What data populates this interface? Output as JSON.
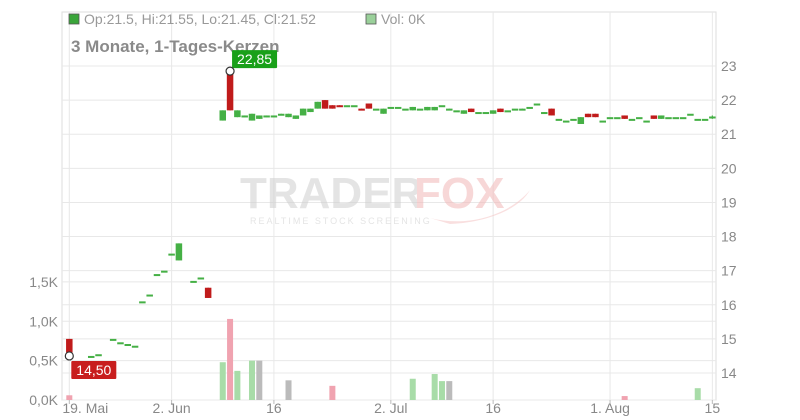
{
  "header": {
    "ohlc_text": "Op:21.5, Hi:21.55, Lo:21.45, Cl:21.52",
    "vol_text": "Vol: 0K",
    "subtitle": "3 Monate, 1-Tages-Kerzen",
    "ohlc_color": "#3aa53a",
    "vol_color": "#9ad09a"
  },
  "watermark": {
    "brand_left": "TRADER",
    "brand_right": "FOX",
    "tagline": "REALTIME STOCK SCREENING"
  },
  "callouts": {
    "high": "22,85",
    "low": "14,50",
    "high_color": "#19a019",
    "low_color": "#c81e1e"
  },
  "colors": {
    "up": "#45b045",
    "down": "#c01b1b",
    "vol_up": "#a8dca8",
    "vol_down": "#f0a3b0",
    "vol_neutral": "#bbbbbb",
    "grid": "#e8e8e8"
  },
  "chart_data": {
    "type": "candlestick",
    "y_price_ticks": [
      "14",
      "15",
      "16",
      "17",
      "18",
      "19",
      "20",
      "21",
      "22",
      "23"
    ],
    "y_price_range": [
      13.6,
      23.7
    ],
    "y_volume_ticks": [
      "0,0K",
      "0,5K",
      "1,0K",
      "1,5K"
    ],
    "y_volume_range": [
      0,
      1.55
    ],
    "x_ticks": [
      {
        "label": "19. Mai",
        "day": 0
      },
      {
        "label": "2. Jun",
        "day": 14
      },
      {
        "label": "16",
        "day": 28
      },
      {
        "label": "2. Jul",
        "day": 44
      },
      {
        "label": "16",
        "day": 58
      },
      {
        "label": "1. Aug",
        "day": 74
      },
      {
        "label": "15",
        "day": 88
      }
    ],
    "x_range": [
      -1,
      88.5
    ],
    "candles": [
      {
        "day": 0,
        "open": 15.0,
        "high": 15.0,
        "low": 14.5,
        "close": 14.6,
        "vol": 0.06
      },
      {
        "day": 3,
        "open": 14.5,
        "high": 14.5,
        "low": 14.5,
        "close": 14.5
      },
      {
        "day": 4,
        "open": 14.55,
        "high": 14.55,
        "low": 14.55,
        "close": 14.55
      },
      {
        "day": 6,
        "open": 15.0,
        "high": 15.0,
        "low": 15.0,
        "close": 15.0
      },
      {
        "day": 7,
        "open": 14.9,
        "high": 14.9,
        "low": 14.9,
        "close": 14.9
      },
      {
        "day": 8,
        "open": 14.85,
        "high": 14.85,
        "low": 14.85,
        "close": 14.85
      },
      {
        "day": 9,
        "open": 14.8,
        "high": 14.8,
        "low": 14.8,
        "close": 14.8
      },
      {
        "day": 10,
        "open": 16.1,
        "high": 16.1,
        "low": 16.1,
        "close": 16.1
      },
      {
        "day": 11,
        "open": 16.3,
        "high": 16.3,
        "low": 16.3,
        "close": 16.3
      },
      {
        "day": 12,
        "open": 16.9,
        "high": 16.9,
        "low": 16.9,
        "close": 16.9
      },
      {
        "day": 13,
        "open": 17.0,
        "high": 17.0,
        "low": 17.0,
        "close": 17.0
      },
      {
        "day": 14,
        "open": 17.5,
        "high": 17.5,
        "low": 17.5,
        "close": 17.5
      },
      {
        "day": 15,
        "open": 17.3,
        "high": 17.8,
        "low": 17.3,
        "close": 17.8
      },
      {
        "day": 17,
        "open": 16.7,
        "high": 16.7,
        "low": 16.7,
        "close": 16.7
      },
      {
        "day": 18,
        "open": 16.8,
        "high": 16.8,
        "low": 16.8,
        "close": 16.8
      },
      {
        "day": 19,
        "open": 16.5,
        "high": 16.5,
        "low": 16.2,
        "close": 16.2
      },
      {
        "day": 21,
        "open": 21.4,
        "high": 21.7,
        "low": 21.4,
        "close": 21.7,
        "vol": 0.48
      },
      {
        "day": 22,
        "open": 22.85,
        "high": 22.85,
        "low": 21.7,
        "close": 21.7,
        "vol": 1.03
      },
      {
        "day": 23,
        "open": 21.5,
        "high": 21.7,
        "low": 21.5,
        "close": 21.7,
        "vol": 0.37
      },
      {
        "day": 24,
        "open": 21.5,
        "high": 21.55,
        "low": 21.5,
        "close": 21.55
      },
      {
        "day": 25,
        "open": 21.4,
        "high": 21.6,
        "low": 21.4,
        "close": 21.6,
        "vol": 0.5
      },
      {
        "day": 26,
        "open": 21.45,
        "high": 21.55,
        "low": 21.45,
        "close": 21.55
      },
      {
        "day": 27,
        "open": 21.5,
        "high": 21.55,
        "low": 21.5,
        "close": 21.55
      },
      {
        "day": 28,
        "open": 21.5,
        "high": 21.55,
        "low": 21.5,
        "close": 21.55
      },
      {
        "day": 29,
        "open": 21.55,
        "high": 21.6,
        "low": 21.55,
        "close": 21.6
      },
      {
        "day": 30,
        "open": 21.5,
        "high": 21.6,
        "low": 21.5,
        "close": 21.6,
        "vol": 0.25
      },
      {
        "day": 31,
        "open": 21.45,
        "high": 21.55,
        "low": 21.45,
        "close": 21.55
      },
      {
        "day": 32,
        "open": 21.55,
        "high": 21.75,
        "low": 21.55,
        "close": 21.75
      },
      {
        "day": 33,
        "open": 21.65,
        "high": 21.75,
        "low": 21.65,
        "close": 21.75
      },
      {
        "day": 34,
        "open": 21.75,
        "high": 21.95,
        "low": 21.75,
        "close": 21.95
      },
      {
        "day": 35,
        "open": 22.0,
        "high": 22.0,
        "low": 21.75,
        "close": 21.75
      },
      {
        "day": 36,
        "open": 21.85,
        "high": 21.85,
        "low": 21.75,
        "close": 21.75,
        "vol": 0.18
      },
      {
        "day": 37,
        "open": 21.85,
        "high": 21.85,
        "low": 21.8,
        "close": 21.8
      },
      {
        "day": 38,
        "open": 21.85,
        "high": 21.85,
        "low": 21.85,
        "close": 21.85
      },
      {
        "day": 39,
        "open": 21.85,
        "high": 21.85,
        "low": 21.85,
        "close": 21.85
      },
      {
        "day": 40,
        "open": 21.75,
        "high": 21.75,
        "low": 21.7,
        "close": 21.7
      },
      {
        "day": 41,
        "open": 21.9,
        "high": 21.9,
        "low": 21.75,
        "close": 21.75
      },
      {
        "day": 42,
        "open": 21.75,
        "high": 21.75,
        "low": 21.75,
        "close": 21.75
      },
      {
        "day": 43,
        "open": 21.6,
        "high": 21.75,
        "low": 21.6,
        "close": 21.75
      },
      {
        "day": 44,
        "open": 21.8,
        "high": 21.8,
        "low": 21.8,
        "close": 21.8
      },
      {
        "day": 45,
        "open": 21.8,
        "high": 21.8,
        "low": 21.8,
        "close": 21.8
      },
      {
        "day": 46,
        "open": 21.75,
        "high": 21.75,
        "low": 21.75,
        "close": 21.75
      },
      {
        "day": 47,
        "open": 21.7,
        "high": 21.8,
        "low": 21.7,
        "close": 21.8,
        "vol": 0.27
      },
      {
        "day": 48,
        "open": 21.75,
        "high": 21.75,
        "low": 21.75,
        "close": 21.75
      },
      {
        "day": 49,
        "open": 21.7,
        "high": 21.8,
        "low": 21.7,
        "close": 21.8
      },
      {
        "day": 50,
        "open": 21.7,
        "high": 21.8,
        "low": 21.7,
        "close": 21.8,
        "vol": 0.33
      },
      {
        "day": 51,
        "open": 21.85,
        "high": 21.85,
        "low": 21.85,
        "close": 21.85,
        "vol": 0.24
      },
      {
        "day": 52,
        "open": 21.7,
        "high": 21.75,
        "low": 21.7,
        "close": 21.75
      },
      {
        "day": 53,
        "open": 21.7,
        "high": 21.7,
        "low": 21.7,
        "close": 21.7
      },
      {
        "day": 54,
        "open": 21.6,
        "high": 21.7,
        "low": 21.6,
        "close": 21.7
      },
      {
        "day": 55,
        "open": 21.75,
        "high": 21.75,
        "low": 21.65,
        "close": 21.65
      },
      {
        "day": 56,
        "open": 21.65,
        "high": 21.65,
        "low": 21.65,
        "close": 21.65
      },
      {
        "day": 57,
        "open": 21.65,
        "high": 21.65,
        "low": 21.65,
        "close": 21.65
      },
      {
        "day": 58,
        "open": 21.6,
        "high": 21.7,
        "low": 21.6,
        "close": 21.7
      },
      {
        "day": 59,
        "open": 21.75,
        "high": 21.75,
        "low": 21.65,
        "close": 21.65
      },
      {
        "day": 60,
        "open": 21.7,
        "high": 21.7,
        "low": 21.7,
        "close": 21.7
      },
      {
        "day": 61,
        "open": 21.75,
        "high": 21.75,
        "low": 21.75,
        "close": 21.75
      },
      {
        "day": 62,
        "open": 21.7,
        "high": 21.75,
        "low": 21.7,
        "close": 21.75
      },
      {
        "day": 63,
        "open": 21.8,
        "high": 21.8,
        "low": 21.8,
        "close": 21.8
      },
      {
        "day": 64,
        "open": 21.9,
        "high": 21.9,
        "low": 21.9,
        "close": 21.9
      },
      {
        "day": 65,
        "open": 21.6,
        "high": 21.65,
        "low": 21.6,
        "close": 21.65
      },
      {
        "day": 66,
        "open": 21.75,
        "high": 21.75,
        "low": 21.55,
        "close": 21.55
      },
      {
        "day": 67,
        "open": 21.45,
        "high": 21.45,
        "low": 21.45,
        "close": 21.45
      },
      {
        "day": 68,
        "open": 21.4,
        "high": 21.4,
        "low": 21.4,
        "close": 21.4
      },
      {
        "day": 69,
        "open": 21.45,
        "high": 21.45,
        "low": 21.45,
        "close": 21.45
      },
      {
        "day": 70,
        "open": 21.3,
        "high": 21.5,
        "low": 21.3,
        "close": 21.5
      },
      {
        "day": 71,
        "open": 21.6,
        "high": 21.6,
        "low": 21.5,
        "close": 21.5
      },
      {
        "day": 72,
        "open": 21.6,
        "high": 21.6,
        "low": 21.5,
        "close": 21.5
      },
      {
        "day": 73,
        "open": 21.4,
        "high": 21.4,
        "low": 21.4,
        "close": 21.4
      },
      {
        "day": 74,
        "open": 21.5,
        "high": 21.5,
        "low": 21.5,
        "close": 21.5
      },
      {
        "day": 75,
        "open": 21.5,
        "high": 21.5,
        "low": 21.5,
        "close": 21.5
      },
      {
        "day": 76,
        "open": 21.55,
        "high": 21.55,
        "low": 21.45,
        "close": 21.45,
        "vol": 0.05
      },
      {
        "day": 77,
        "open": 21.45,
        "high": 21.45,
        "low": 21.45,
        "close": 21.45
      },
      {
        "day": 78,
        "open": 21.5,
        "high": 21.5,
        "low": 21.5,
        "close": 21.5
      },
      {
        "day": 79,
        "open": 21.4,
        "high": 21.4,
        "low": 21.4,
        "close": 21.4
      },
      {
        "day": 80,
        "open": 21.55,
        "high": 21.55,
        "low": 21.45,
        "close": 21.45
      },
      {
        "day": 81,
        "open": 21.45,
        "high": 21.55,
        "low": 21.45,
        "close": 21.55
      },
      {
        "day": 82,
        "open": 21.5,
        "high": 21.5,
        "low": 21.5,
        "close": 21.5
      },
      {
        "day": 83,
        "open": 21.5,
        "high": 21.5,
        "low": 21.5,
        "close": 21.5
      },
      {
        "day": 84,
        "open": 21.5,
        "high": 21.5,
        "low": 21.5,
        "close": 21.5
      },
      {
        "day": 85,
        "open": 21.6,
        "high": 21.6,
        "low": 21.6,
        "close": 21.6
      },
      {
        "day": 86,
        "open": 21.45,
        "high": 21.45,
        "low": 21.45,
        "close": 21.45,
        "vol": 0.15
      },
      {
        "day": 87,
        "open": 21.45,
        "high": 21.45,
        "low": 21.45,
        "close": 21.45
      },
      {
        "day": 88,
        "open": 21.5,
        "high": 21.55,
        "low": 21.45,
        "close": 21.52
      }
    ],
    "volume_neutral": [
      {
        "day": 26,
        "vol": 0.5
      },
      {
        "day": 30,
        "vol": 0.25
      },
      {
        "day": 52,
        "vol": 0.24
      }
    ]
  }
}
